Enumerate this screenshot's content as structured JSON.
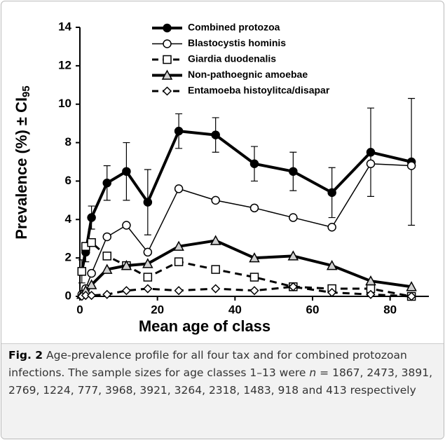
{
  "chart_data": {
    "type": "line",
    "x_label": "Mean age of class",
    "y_label": "Prevalence (%) ± CI",
    "y_label_sub": "95",
    "x": [
      0.5,
      1.5,
      3,
      7,
      12,
      17.5,
      25.5,
      35,
      45,
      55,
      65,
      75,
      85.5
    ],
    "xlim": [
      0,
      90
    ],
    "xticks": [
      0,
      20,
      40,
      60,
      80
    ],
    "ylim": [
      0,
      14
    ],
    "yticks": [
      0,
      2,
      4,
      6,
      8,
      10,
      12,
      14
    ],
    "series": [
      {
        "name": "Combined protozoa",
        "color": "#000000",
        "line_width": 4,
        "dash": "solid",
        "marker": "circle",
        "marker_fill": "#000000",
        "values": [
          1.3,
          2.3,
          4.1,
          5.9,
          6.5,
          4.9,
          8.6,
          8.4,
          6.9,
          6.5,
          5.4,
          7.5,
          7.0
        ],
        "errors": [
          0.6,
          0.5,
          0.6,
          0.9,
          1.5,
          1.7,
          0.9,
          0.9,
          0.9,
          1.0,
          1.3,
          2.3,
          3.3
        ]
      },
      {
        "name": "Blastocystis hominis",
        "color": "#000000",
        "line_width": 1.5,
        "dash": "solid",
        "marker": "circle",
        "marker_fill": "#ffffff",
        "values": [
          0.1,
          0.4,
          1.2,
          3.1,
          3.7,
          2.3,
          5.6,
          5.0,
          4.6,
          4.1,
          3.6,
          6.9,
          6.8
        ]
      },
      {
        "name": "Giardia duodenalis",
        "color": "#000000",
        "line_width": 3,
        "dash": "dashed",
        "marker": "square",
        "marker_fill": "#ffffff",
        "values": [
          1.3,
          2.6,
          2.8,
          2.1,
          1.6,
          1.0,
          1.8,
          1.4,
          1.0,
          0.5,
          0.4,
          0.4,
          0.0
        ]
      },
      {
        "name": "Non-pathoegnic amoebae",
        "color": "#000000",
        "line_width": 4,
        "dash": "solid",
        "marker": "triangle",
        "marker_fill": "#d0d0d0",
        "values": [
          0.1,
          0.3,
          0.6,
          1.4,
          1.6,
          1.7,
          2.6,
          2.9,
          2.0,
          2.1,
          1.6,
          0.8,
          0.5
        ]
      },
      {
        "name": "Entamoeba histoylitca/disapar",
        "color": "#000000",
        "line_width": 3,
        "dash": "dashed",
        "marker": "diamond",
        "marker_fill": "#ffffff",
        "values": [
          0.0,
          0.05,
          0.05,
          0.1,
          0.3,
          0.4,
          0.3,
          0.4,
          0.3,
          0.5,
          0.2,
          0.1,
          0.0
        ]
      }
    ]
  },
  "caption": {
    "label": "Fig. 2",
    "text_1": "Age-prevalence profile for all four tax and for combined protozoan infections. The sample sizes for age classes 1–13 were",
    "n": "n",
    "text_2": "= 1867, 2473, 3891, 2769, 1224, 777, 3968, 3921, 3264, 2318, 1483, 918 and 413 respectively"
  }
}
